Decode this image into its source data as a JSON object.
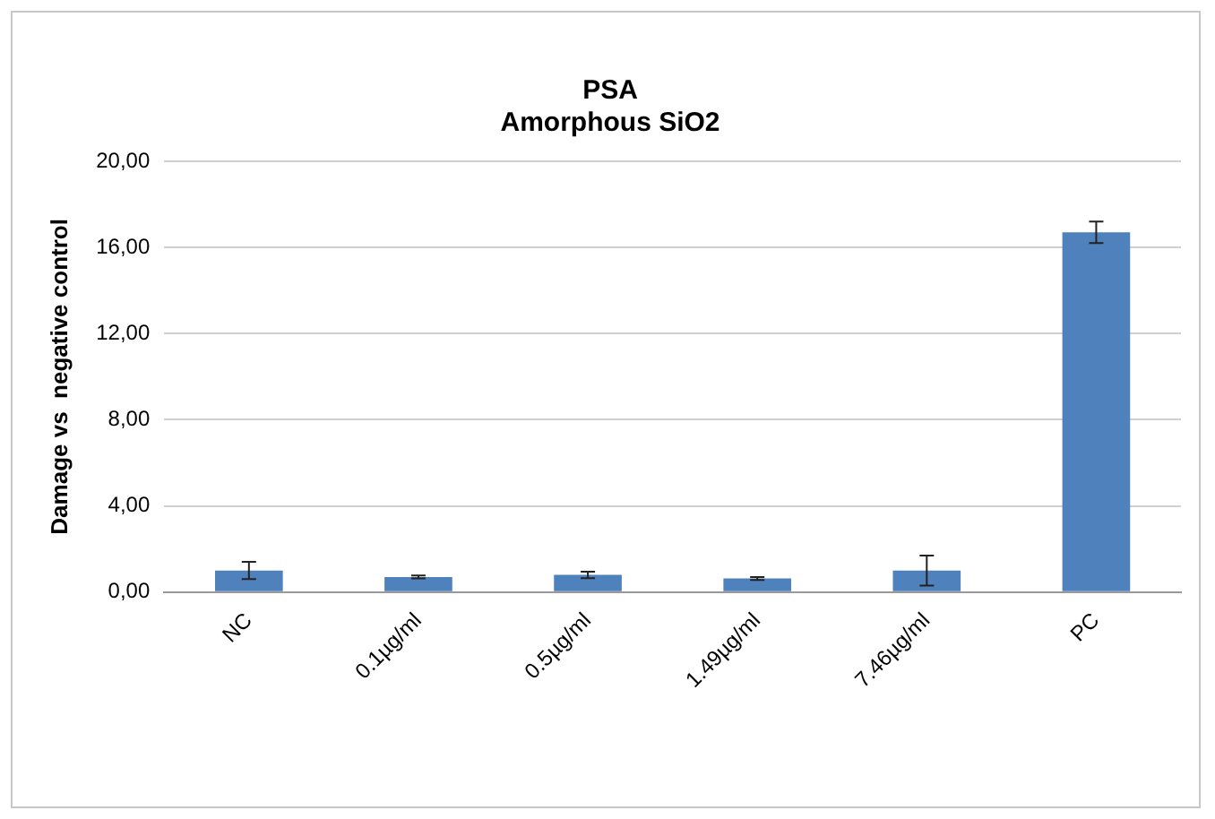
{
  "chart_data": {
    "type": "bar",
    "title": [
      "PSA",
      "Amorphous SiO2"
    ],
    "ylabel": "Damage vs  negative control",
    "categories": [
      "NC",
      "0.1µg/ml",
      "0.5µg/ml",
      "1.49µg/ml",
      "7.46µg/ml",
      "PC"
    ],
    "values": [
      1.0,
      0.7,
      0.8,
      0.63,
      1.0,
      16.7
    ],
    "errors": [
      0.4,
      0.07,
      0.15,
      0.07,
      0.7,
      0.5
    ],
    "color": "#4f81bd",
    "ylim": [
      0,
      20
    ],
    "yticks": [
      {
        "value": 0,
        "label": "0,00"
      },
      {
        "value": 4,
        "label": "4,00"
      },
      {
        "value": 8,
        "label": "8,00"
      },
      {
        "value": 12,
        "label": "12,00"
      },
      {
        "value": 16,
        "label": "16,00"
      },
      {
        "value": 20,
        "label": "20,00"
      }
    ],
    "grid": "y",
    "legend": false
  }
}
